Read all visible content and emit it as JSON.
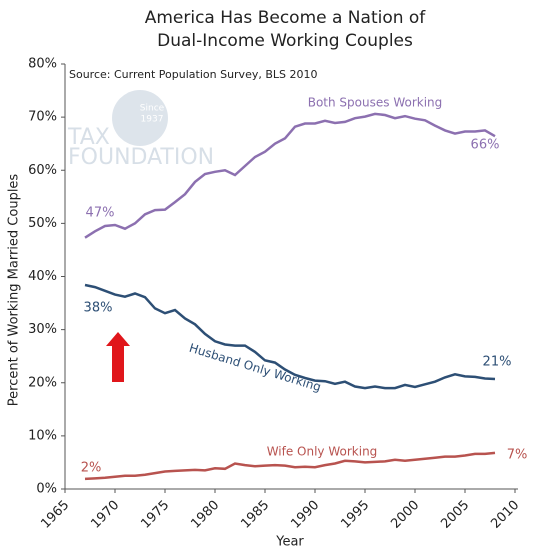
{
  "chart_data": {
    "type": "line",
    "title_lines": [
      "America Has Become a Nation of",
      "Dual-Income Working Couples"
    ],
    "source": "Source: Current Population Survey, BLS 2010",
    "watermark": [
      "TAX",
      "FOUNDATION",
      "Since",
      "1937"
    ],
    "x_label": "Year",
    "y_label": "Percent of Working Married Couples",
    "x": [
      1967,
      1968,
      1969,
      1970,
      1971,
      1972,
      1973,
      1974,
      1975,
      1976,
      1977,
      1978,
      1979,
      1980,
      1981,
      1982,
      1983,
      1984,
      1985,
      1986,
      1987,
      1988,
      1989,
      1990,
      1991,
      1992,
      1993,
      1994,
      1995,
      1996,
      1997,
      1998,
      1999,
      2000,
      2001,
      2002,
      2003,
      2004,
      2005,
      2006,
      2007,
      2008
    ],
    "series": [
      {
        "name": "Both Spouses Working",
        "color": "#8c70b0",
        "start_label": "47%",
        "end_label": "66%",
        "values": [
          47.3,
          48.5,
          49.5,
          49.7,
          49,
          50,
          51.7,
          52.5,
          52.6,
          54,
          55.5,
          57.8,
          59.3,
          59.7,
          60,
          59.1,
          60.8,
          62.5,
          63.5,
          65,
          66,
          68.2,
          68.8,
          68.8,
          69.3,
          68.9,
          69.1,
          69.8,
          70.1,
          70.6,
          70.4,
          69.8,
          70.2,
          69.7,
          69.4,
          68.4,
          67.5,
          66.9,
          67.3,
          67.3,
          67.5,
          66.4
        ]
      },
      {
        "name": "Husband Only Working",
        "color": "#2d4f75",
        "start_label": "38%",
        "end_label": "21%",
        "values": [
          38.4,
          38,
          37.3,
          36.6,
          36.2,
          36.8,
          36.1,
          34,
          33.1,
          33.7,
          32.1,
          31,
          29.2,
          27.8,
          27.2,
          27,
          27,
          25.8,
          24.2,
          23.8,
          22.5,
          21.5,
          20.9,
          20.4,
          20.3,
          19.8,
          20.2,
          19.3,
          19,
          19.3,
          19,
          19,
          19.6,
          19.2,
          19.7,
          20.2,
          21,
          21.6,
          21.2,
          21.1,
          20.8,
          20.7
        ]
      },
      {
        "name": "Wife Only Working",
        "color": "#b8534f",
        "start_label": "2%",
        "end_label": "7%",
        "values": [
          1.9,
          2,
          2.1,
          2.3,
          2.5,
          2.5,
          2.7,
          3,
          3.3,
          3.4,
          3.5,
          3.6,
          3.5,
          3.9,
          3.8,
          4.8,
          4.5,
          4.3,
          4.4,
          4.5,
          4.4,
          4.1,
          4.2,
          4.1,
          4.5,
          4.8,
          5.3,
          5.2,
          5,
          5.1,
          5.2,
          5.5,
          5.3,
          5.5,
          5.7,
          5.9,
          6.1,
          6.1,
          6.3,
          6.6,
          6.6,
          6.8
        ]
      }
    ],
    "xlim": [
      1965,
      2010
    ],
    "xticks": [
      1965,
      1970,
      1975,
      1980,
      1985,
      1990,
      1995,
      2000,
      2005,
      2010
    ],
    "ylim": [
      0,
      80
    ],
    "yticks": [
      {
        "value": 0,
        "label": "0%"
      },
      {
        "value": 10,
        "label": "10%"
      },
      {
        "value": 20,
        "label": "20%"
      },
      {
        "value": 30,
        "label": "30%"
      },
      {
        "value": 40,
        "label": "40%"
      },
      {
        "value": 50,
        "label": "50%"
      },
      {
        "value": 60,
        "label": "60%"
      },
      {
        "value": 70,
        "label": "70%"
      },
      {
        "value": 80,
        "label": "80%"
      }
    ],
    "grid": false
  }
}
